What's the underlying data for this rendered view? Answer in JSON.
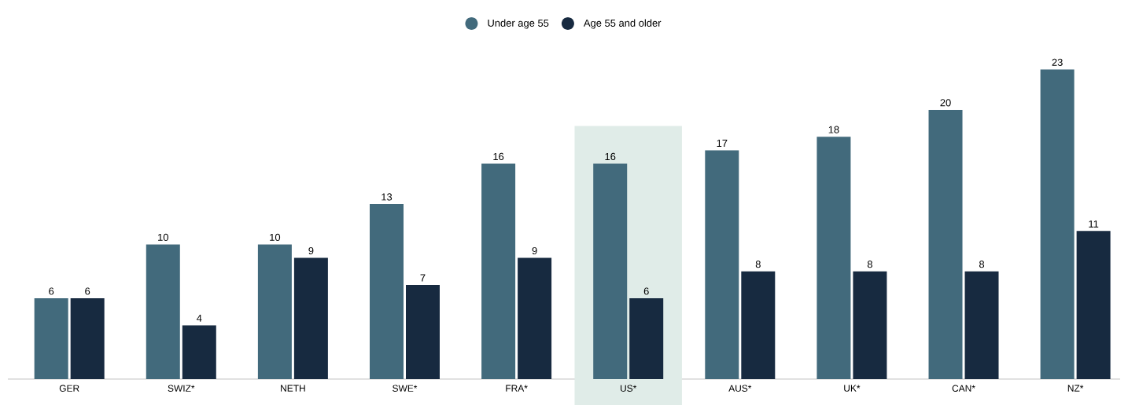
{
  "chart_data": {
    "type": "bar",
    "categories": [
      "GER",
      "SWIZ*",
      "NETH",
      "SWE*",
      "FRA*",
      "US*",
      "AUS*",
      "UK*",
      "CAN*",
      "NZ*"
    ],
    "series": [
      {
        "name": "Under age 55",
        "color": "#426a7c",
        "values": [
          6,
          10,
          10,
          13,
          16,
          16,
          17,
          18,
          20,
          23
        ]
      },
      {
        "name": "Age 55 and older",
        "color": "#172a40",
        "values": [
          6,
          4,
          9,
          7,
          9,
          6,
          8,
          8,
          8,
          11
        ]
      }
    ],
    "data_labels": true,
    "legend": "top",
    "grid": false,
    "bands": [
      {
        "axis": "x",
        "from": "US*",
        "to": "US*",
        "color": "#e0ece8"
      }
    ]
  }
}
